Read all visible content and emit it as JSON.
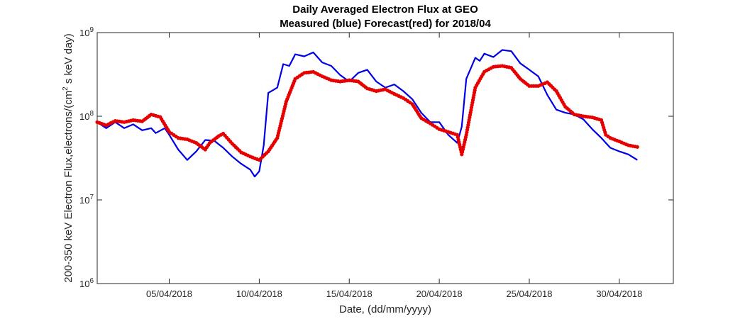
{
  "chart_data": {
    "type": "line",
    "title": "Daily Averaged Electron Flux at GEO",
    "subtitle": "Measured (blue) Forecast(red) for 2018/04",
    "xlabel": "Date, (dd/mm/yyyy)",
    "ylabel_main": "200-350 keV Electron Flux,electrons/(cm",
    "ylabel_sup": "2",
    "ylabel_tail": " s keV day)",
    "yscale": "log",
    "xlim": [
      "2018-04-01",
      "2018-05-03"
    ],
    "ylim": [
      1000000,
      1000000000
    ],
    "xticks": [
      {
        "date": "2018-04-05",
        "label": "05/04/2018"
      },
      {
        "date": "2018-04-10",
        "label": "10/04/2018"
      },
      {
        "date": "2018-04-15",
        "label": "15/04/2018"
      },
      {
        "date": "2018-04-20",
        "label": "20/04/2018"
      },
      {
        "date": "2018-04-25",
        "label": "25/04/2018"
      },
      {
        "date": "2018-04-30",
        "label": "30/04/2018"
      }
    ],
    "yticks": [
      {
        "value": 1000000,
        "base": "10",
        "exp": "6"
      },
      {
        "value": 10000000,
        "base": "10",
        "exp": "7"
      },
      {
        "value": 100000000,
        "base": "10",
        "exp": "8"
      },
      {
        "value": 1000000000,
        "base": "10",
        "exp": "9"
      }
    ],
    "grid": false,
    "series": [
      {
        "name": "Measured",
        "color": "#0000e6",
        "style": "line",
        "points": [
          [
            "2018-04-01 00:00",
            85000000
          ],
          [
            "2018-04-01 12:00",
            72000000
          ],
          [
            "2018-04-02 00:00",
            85000000
          ],
          [
            "2018-04-02 12:00",
            72000000
          ],
          [
            "2018-04-03 00:00",
            80000000
          ],
          [
            "2018-04-03 12:00",
            68000000
          ],
          [
            "2018-04-04 00:00",
            72000000
          ],
          [
            "2018-04-04 06:00",
            63000000
          ],
          [
            "2018-04-04 18:00",
            72000000
          ],
          [
            "2018-04-05 00:00",
            60000000
          ],
          [
            "2018-04-05 12:00",
            40000000
          ],
          [
            "2018-04-06 00:00",
            30000000
          ],
          [
            "2018-04-06 12:00",
            38000000
          ],
          [
            "2018-04-07 00:00",
            52000000
          ],
          [
            "2018-04-07 12:00",
            51000000
          ],
          [
            "2018-04-08 00:00",
            42000000
          ],
          [
            "2018-04-08 12:00",
            33000000
          ],
          [
            "2018-04-09 00:00",
            27000000
          ],
          [
            "2018-04-09 12:00",
            23000000
          ],
          [
            "2018-04-09 18:00",
            19000000
          ],
          [
            "2018-04-10 00:00",
            22000000
          ],
          [
            "2018-04-10 06:00",
            45000000
          ],
          [
            "2018-04-10 12:00",
            190000000
          ],
          [
            "2018-04-11 00:00",
            220000000
          ],
          [
            "2018-04-11 08:00",
            420000000
          ],
          [
            "2018-04-11 16:00",
            400000000
          ],
          [
            "2018-04-12 00:00",
            550000000
          ],
          [
            "2018-04-12 12:00",
            520000000
          ],
          [
            "2018-04-13 00:00",
            580000000
          ],
          [
            "2018-04-13 12:00",
            440000000
          ],
          [
            "2018-04-14 00:00",
            400000000
          ],
          [
            "2018-04-14 12:00",
            310000000
          ],
          [
            "2018-04-15 00:00",
            260000000
          ],
          [
            "2018-04-15 12:00",
            330000000
          ],
          [
            "2018-04-16 00:00",
            360000000
          ],
          [
            "2018-04-16 12:00",
            260000000
          ],
          [
            "2018-04-17 00:00",
            220000000
          ],
          [
            "2018-04-17 12:00",
            240000000
          ],
          [
            "2018-04-18 00:00",
            200000000
          ],
          [
            "2018-04-18 12:00",
            160000000
          ],
          [
            "2018-04-19 00:00",
            110000000
          ],
          [
            "2018-04-19 12:00",
            85000000
          ],
          [
            "2018-04-20 00:00",
            85000000
          ],
          [
            "2018-04-20 12:00",
            60000000
          ],
          [
            "2018-04-21 00:00",
            48000000
          ],
          [
            "2018-04-21 06:00",
            75000000
          ],
          [
            "2018-04-21 12:00",
            280000000
          ],
          [
            "2018-04-22 00:00",
            500000000
          ],
          [
            "2018-04-22 06:00",
            460000000
          ],
          [
            "2018-04-22 12:00",
            560000000
          ],
          [
            "2018-04-23 00:00",
            510000000
          ],
          [
            "2018-04-23 12:00",
            620000000
          ],
          [
            "2018-04-24 00:00",
            600000000
          ],
          [
            "2018-04-24 12:00",
            430000000
          ],
          [
            "2018-04-25 00:00",
            360000000
          ],
          [
            "2018-04-25 12:00",
            300000000
          ],
          [
            "2018-04-26 00:00",
            180000000
          ],
          [
            "2018-04-26 12:00",
            120000000
          ],
          [
            "2018-04-27 00:00",
            110000000
          ],
          [
            "2018-04-27 12:00",
            105000000
          ],
          [
            "2018-04-28 00:00",
            92000000
          ],
          [
            "2018-04-28 12:00",
            70000000
          ],
          [
            "2018-04-29 00:00",
            55000000
          ],
          [
            "2018-04-29 12:00",
            42000000
          ],
          [
            "2018-04-30 00:00",
            38000000
          ],
          [
            "2018-04-30 12:00",
            35000000
          ],
          [
            "2018-05-01 00:00",
            30000000
          ]
        ]
      },
      {
        "name": "Forecast",
        "color": "#e60000",
        "style": "dots",
        "points": [
          [
            "2018-04-01 00:00",
            85000000
          ],
          [
            "2018-04-01 12:00",
            78000000
          ],
          [
            "2018-04-02 00:00",
            88000000
          ],
          [
            "2018-04-02 12:00",
            85000000
          ],
          [
            "2018-04-03 00:00",
            90000000
          ],
          [
            "2018-04-03 12:00",
            87000000
          ],
          [
            "2018-04-04 00:00",
            105000000
          ],
          [
            "2018-04-04 12:00",
            98000000
          ],
          [
            "2018-04-05 00:00",
            65000000
          ],
          [
            "2018-04-05 12:00",
            55000000
          ],
          [
            "2018-04-06 00:00",
            53000000
          ],
          [
            "2018-04-06 12:00",
            48000000
          ],
          [
            "2018-04-07 00:00",
            40000000
          ],
          [
            "2018-04-07 06:00",
            48000000
          ],
          [
            "2018-04-07 18:00",
            58000000
          ],
          [
            "2018-04-08 00:00",
            62000000
          ],
          [
            "2018-04-08 12:00",
            47000000
          ],
          [
            "2018-04-09 00:00",
            37000000
          ],
          [
            "2018-04-09 12:00",
            33000000
          ],
          [
            "2018-04-10 00:00",
            30000000
          ],
          [
            "2018-04-10 12:00",
            38000000
          ],
          [
            "2018-04-11 00:00",
            55000000
          ],
          [
            "2018-04-11 12:00",
            150000000
          ],
          [
            "2018-04-12 00:00",
            280000000
          ],
          [
            "2018-04-12 12:00",
            330000000
          ],
          [
            "2018-04-13 00:00",
            340000000
          ],
          [
            "2018-04-13 12:00",
            300000000
          ],
          [
            "2018-04-14 00:00",
            270000000
          ],
          [
            "2018-04-14 12:00",
            260000000
          ],
          [
            "2018-04-15 00:00",
            270000000
          ],
          [
            "2018-04-15 12:00",
            260000000
          ],
          [
            "2018-04-16 00:00",
            215000000
          ],
          [
            "2018-04-16 12:00",
            200000000
          ],
          [
            "2018-04-17 00:00",
            210000000
          ],
          [
            "2018-04-17 12:00",
            185000000
          ],
          [
            "2018-04-18 00:00",
            165000000
          ],
          [
            "2018-04-18 12:00",
            140000000
          ],
          [
            "2018-04-19 00:00",
            95000000
          ],
          [
            "2018-04-19 12:00",
            82000000
          ],
          [
            "2018-04-20 00:00",
            70000000
          ],
          [
            "2018-04-20 12:00",
            65000000
          ],
          [
            "2018-04-21 00:00",
            60000000
          ],
          [
            "2018-04-21 06:00",
            35000000
          ],
          [
            "2018-04-21 12:00",
            60000000
          ],
          [
            "2018-04-22 00:00",
            220000000
          ],
          [
            "2018-04-22 12:00",
            340000000
          ],
          [
            "2018-04-23 00:00",
            390000000
          ],
          [
            "2018-04-23 12:00",
            400000000
          ],
          [
            "2018-04-24 00:00",
            380000000
          ],
          [
            "2018-04-24 12:00",
            280000000
          ],
          [
            "2018-04-25 00:00",
            230000000
          ],
          [
            "2018-04-25 12:00",
            230000000
          ],
          [
            "2018-04-26 00:00",
            255000000
          ],
          [
            "2018-04-26 12:00",
            200000000
          ],
          [
            "2018-04-27 00:00",
            130000000
          ],
          [
            "2018-04-27 12:00",
            105000000
          ],
          [
            "2018-04-28 00:00",
            100000000
          ],
          [
            "2018-04-28 12:00",
            97000000
          ],
          [
            "2018-04-29 00:00",
            90000000
          ],
          [
            "2018-04-29 06:00",
            60000000
          ],
          [
            "2018-04-29 12:00",
            55000000
          ],
          [
            "2018-04-30 00:00",
            50000000
          ],
          [
            "2018-04-30 12:00",
            45000000
          ],
          [
            "2018-05-01 00:00",
            43000000
          ]
        ]
      }
    ]
  }
}
